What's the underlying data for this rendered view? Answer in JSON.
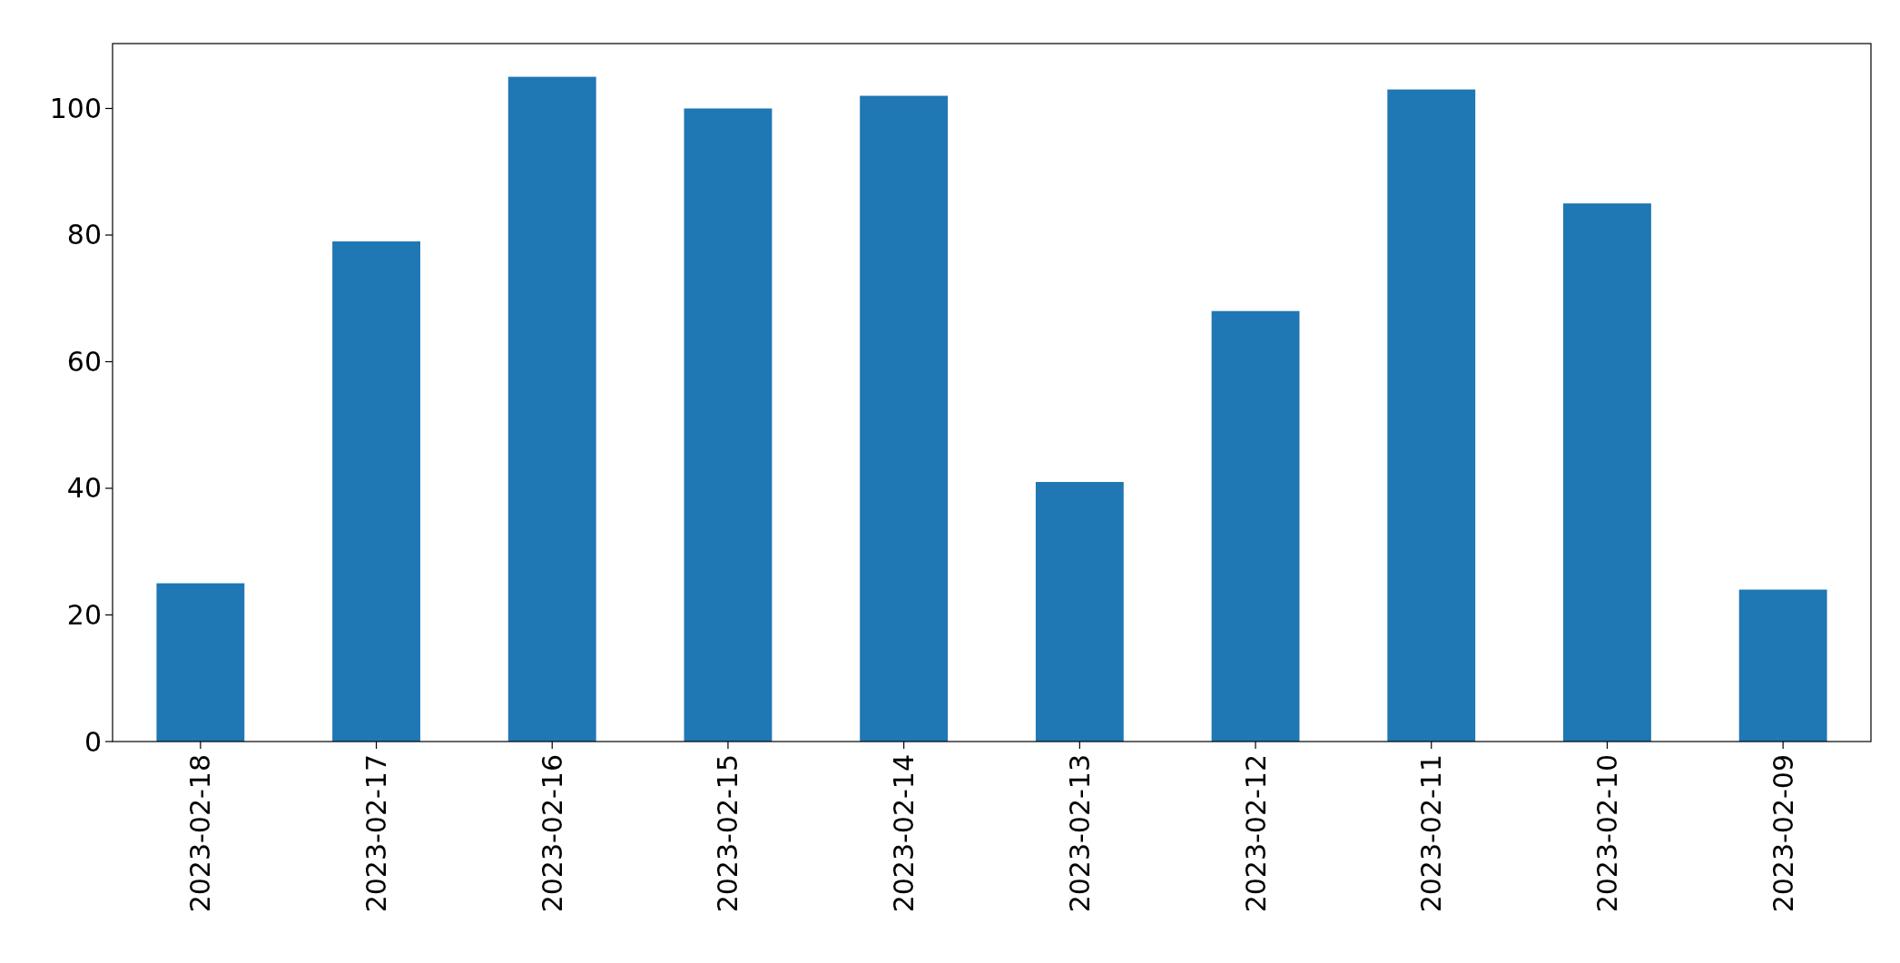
{
  "chart_data": {
    "type": "bar",
    "categories": [
      "2023-02-18",
      "2023-02-17",
      "2023-02-16",
      "2023-02-15",
      "2023-02-14",
      "2023-02-13",
      "2023-02-12",
      "2023-02-11",
      "2023-02-10",
      "2023-02-09"
    ],
    "values": [
      25,
      79,
      105,
      100,
      102,
      41,
      68,
      103,
      85,
      24
    ],
    "color": "#1f77b4",
    "ylim": [
      0,
      110.25
    ],
    "yticks": [
      0,
      20,
      40,
      60,
      80,
      100
    ],
    "grid": false
  }
}
